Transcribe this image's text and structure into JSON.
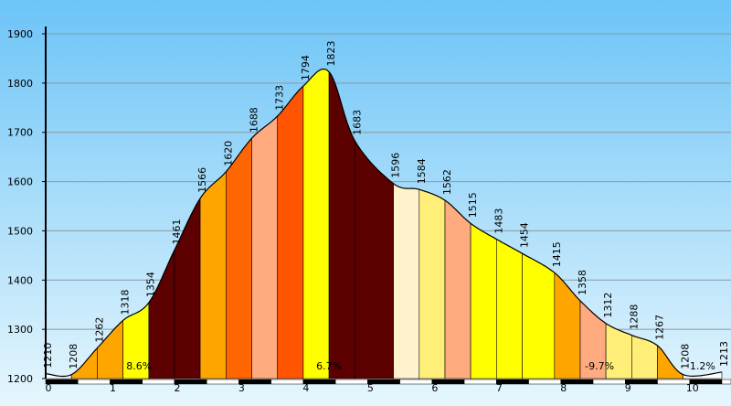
{
  "chart_data": {
    "type": "area",
    "title": "",
    "xlabel": "",
    "ylabel": "",
    "xlim": [
      0,
      10.5
    ],
    "ylim": [
      1200,
      1900
    ],
    "grid": true,
    "x_ticks": [
      "0",
      "1",
      "2",
      "3",
      "4",
      "5",
      "6",
      "7",
      "8",
      "9",
      "10"
    ],
    "y_ticks": [
      "1200",
      "1300",
      "1400",
      "1500",
      "1600",
      "1700",
      "1800",
      "1900"
    ],
    "points": [
      {
        "x": 0.0,
        "y": 1210,
        "label": "1210"
      },
      {
        "x": 0.4,
        "y": 1208,
        "label": "1208"
      },
      {
        "x": 0.8,
        "y": 1262,
        "label": "1262"
      },
      {
        "x": 1.2,
        "y": 1318,
        "label": "1318"
      },
      {
        "x": 1.6,
        "y": 1354,
        "label": "1354"
      },
      {
        "x": 2.0,
        "y": 1461,
        "label": "1461"
      },
      {
        "x": 2.4,
        "y": 1566,
        "label": "1566"
      },
      {
        "x": 2.8,
        "y": 1620,
        "label": "1620"
      },
      {
        "x": 3.2,
        "y": 1688,
        "label": "1688"
      },
      {
        "x": 3.6,
        "y": 1733,
        "label": "1733"
      },
      {
        "x": 4.0,
        "y": 1794,
        "label": "1794"
      },
      {
        "x": 4.4,
        "y": 1823,
        "label": "1823"
      },
      {
        "x": 4.8,
        "y": 1683,
        "label": "1683"
      },
      {
        "x": 5.4,
        "y": 1596,
        "label": "1596"
      },
      {
        "x": 5.8,
        "y": 1584,
        "label": "1584"
      },
      {
        "x": 6.2,
        "y": 1562,
        "label": "1562"
      },
      {
        "x": 6.6,
        "y": 1515,
        "label": "1515"
      },
      {
        "x": 7.0,
        "y": 1483,
        "label": "1483"
      },
      {
        "x": 7.4,
        "y": 1454,
        "label": "1454"
      },
      {
        "x": 7.9,
        "y": 1415,
        "label": "1415"
      },
      {
        "x": 8.3,
        "y": 1358,
        "label": "1358"
      },
      {
        "x": 8.7,
        "y": 1312,
        "label": "1312"
      },
      {
        "x": 9.1,
        "y": 1288,
        "label": "1288"
      },
      {
        "x": 9.5,
        "y": 1267,
        "label": "1267"
      },
      {
        "x": 9.9,
        "y": 1208,
        "label": "1208"
      },
      {
        "x": 10.5,
        "y": 1213,
        "label": "1213"
      }
    ],
    "segment_colors": [
      "#ffffff",
      "#ffa500",
      "#ffa500",
      "#ffff00",
      "#5c0000",
      "#5c0000",
      "#ffa500",
      "#ff6600",
      "#ffaa7f",
      "#ff5500",
      "#ffff00",
      "#5c0000",
      "#5c0000",
      "#fff2cc",
      "#ffee77",
      "#ffaa7f",
      "#ffff00",
      "#ffff00",
      "#ffff00",
      "#ffa500",
      "#ffaa7f",
      "#ffee77",
      "#ffee77",
      "#ffa500",
      "#ffffff"
    ],
    "gradient_labels": [
      {
        "x": 1.45,
        "text": "8.6%"
      },
      {
        "x": 4.4,
        "text": "6.7%"
      },
      {
        "x": 8.6,
        "text": "-9.7%"
      },
      {
        "x": 10.2,
        "text": "1.2%"
      }
    ]
  }
}
